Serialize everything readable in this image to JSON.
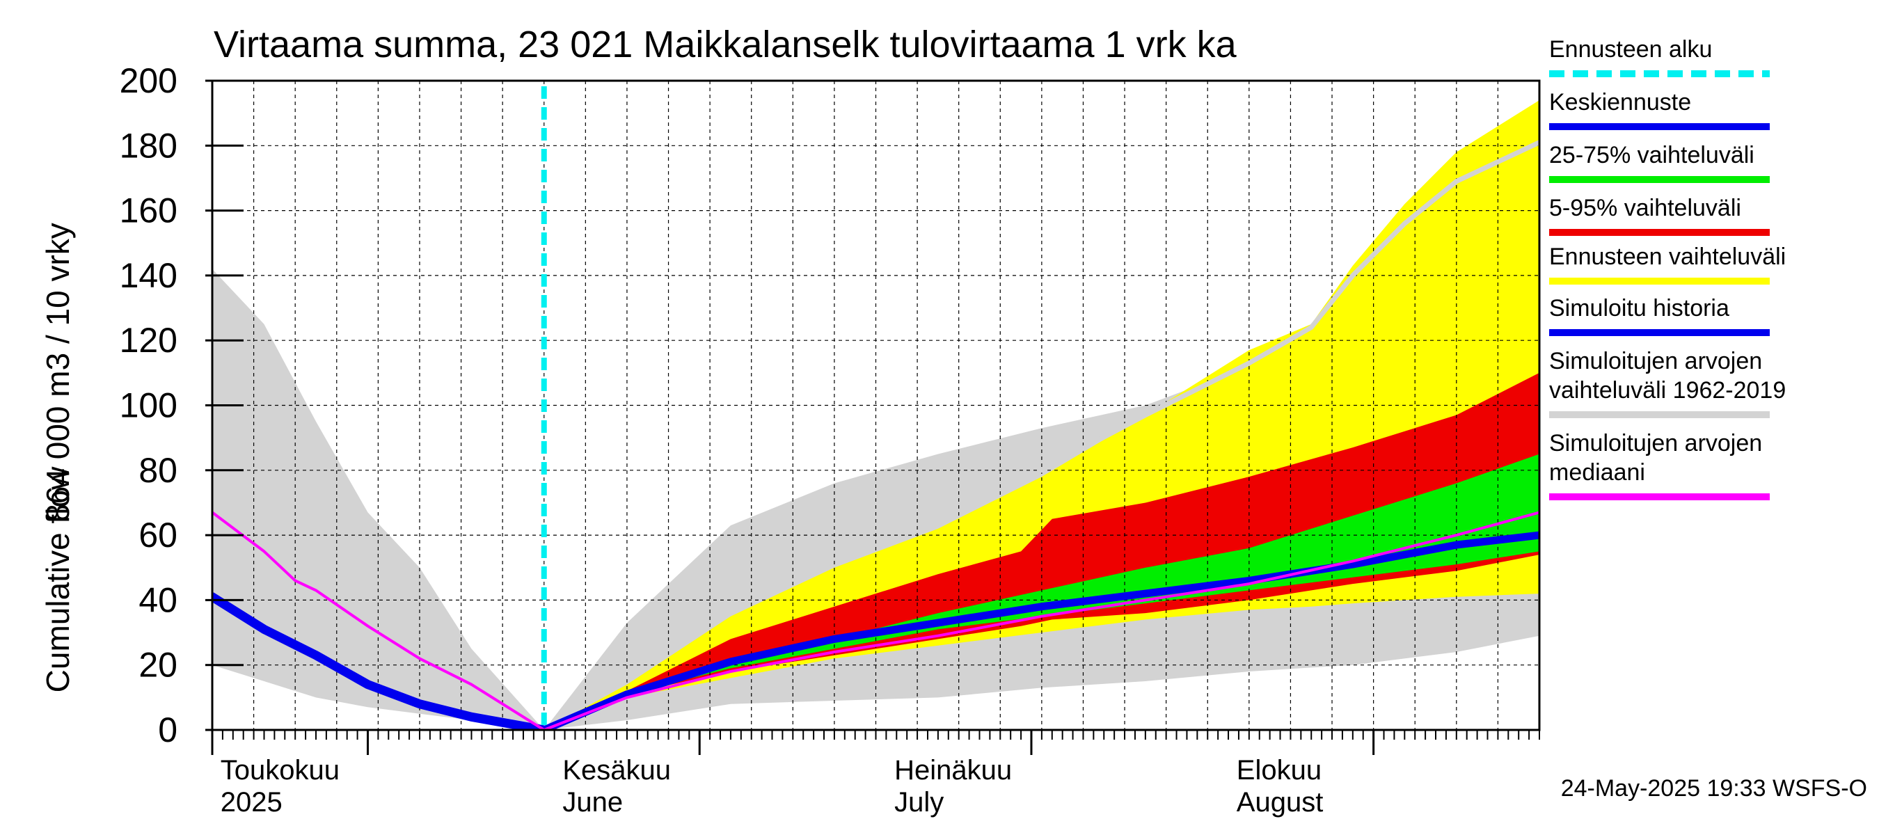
{
  "chart_data": {
    "type": "area",
    "title": "Virtaama summa, 23 021 Maikkalanselk tulovirtaama 1 vrk ka",
    "ylabel_lines": [
      "864 000 m3 / 10 vrky",
      "Cumulative flow"
    ],
    "ylim": [
      0,
      200
    ],
    "yticks": [
      0,
      20,
      40,
      60,
      80,
      100,
      120,
      140,
      160,
      180,
      200
    ],
    "xlim_days": [
      0,
      128
    ],
    "forecast_start_day": 32,
    "months": [
      {
        "day": 7.5,
        "line1": "Toukokuu",
        "line2": "2025"
      },
      {
        "day": 40.5,
        "line1": "Kesäkuu",
        "line2": "June"
      },
      {
        "day": 72.5,
        "line1": "Heinäkuu",
        "line2": "July"
      },
      {
        "day": 105.5,
        "line1": "Elokuu",
        "line2": "August"
      }
    ],
    "month_separators": [
      0,
      15,
      47,
      79,
      112
    ],
    "timestamp": "24-May-2025 19:33 WSFS-O",
    "colors": {
      "forecast_start": "#00f0f0",
      "mean": "#0000ee",
      "band_25_75": "#00ee00",
      "band_5_95": "#ee0000",
      "band_forecast": "#ffff00",
      "hist_band": "#d3d3d3",
      "hist_history": "#0000ee",
      "hist_median": "#ff00ff",
      "upper_line": "#d3d3d3"
    },
    "legend": [
      {
        "label": "Ennusteen alku",
        "color": "#00f0f0",
        "style": "dashed"
      },
      {
        "label": "Keskiennuste",
        "color": "#0000ee",
        "style": "solid"
      },
      {
        "label": "25-75% vaihteluväli",
        "color": "#00ee00",
        "style": "solid"
      },
      {
        "label": "5-95% vaihteluväli",
        "color": "#ee0000",
        "style": "solid"
      },
      {
        "label": "Ennusteen vaihteluväli",
        "color": "#ffff00",
        "style": "solid"
      },
      {
        "label": "Simuloitu historia",
        "color": "#0000ee",
        "style": "solid"
      },
      {
        "label": "Simuloitujen arvojen vaihteluväli 1962-2019",
        "color": "#d3d3d3",
        "style": "solid"
      },
      {
        "label": "Simuloitujen arvojen mediaani",
        "color": "#ff00ff",
        "style": "solid"
      }
    ],
    "series": [
      {
        "name": "Simuloitujen arvojen vaihteluväli 1962-2019",
        "kind": "band",
        "x": [
          0,
          5,
          10,
          15,
          20,
          25,
          32,
          40,
          50,
          60,
          70,
          80,
          90,
          100,
          110,
          120,
          128
        ],
        "upper": [
          142,
          125,
          95,
          67,
          50,
          25,
          0,
          33,
          63,
          76,
          85,
          93,
          100,
          112,
          125,
          150,
          180
        ],
        "lower": [
          20,
          15,
          10,
          7,
          5,
          3,
          0,
          3,
          8,
          9,
          10,
          13,
          15,
          18,
          20,
          24,
          29
        ]
      },
      {
        "name": "Ennusteen vaihteluväli",
        "kind": "band",
        "x": [
          32,
          40,
          50,
          60,
          70,
          80,
          90,
          100,
          106,
          110,
          115,
          120,
          128
        ],
        "upper": [
          0,
          14,
          35,
          50,
          62,
          78,
          97,
          117,
          125,
          143,
          162,
          178,
          194
        ],
        "lower": [
          0,
          10,
          16,
          22,
          26,
          30,
          34,
          37,
          38,
          39,
          40,
          41,
          42
        ]
      },
      {
        "name": "5-95% vaihteluväli",
        "kind": "band",
        "x": [
          32,
          40,
          50,
          60,
          70,
          78,
          81,
          90,
          100,
          110,
          120,
          128
        ],
        "upper": [
          0,
          12,
          28,
          38,
          48,
          55,
          65,
          70,
          78,
          87,
          97,
          110
        ],
        "lower": [
          0,
          11,
          18,
          23,
          28,
          32,
          34,
          36,
          40,
          45,
          49,
          54
        ]
      },
      {
        "name": "25-75% vaihteluväli",
        "kind": "band",
        "x": [
          32,
          40,
          50,
          60,
          70,
          80,
          90,
          100,
          110,
          120,
          128
        ],
        "upper": [
          0,
          12,
          21,
          28,
          36,
          43,
          50,
          56,
          66,
          76,
          85
        ],
        "lower": [
          0,
          11,
          19,
          25,
          31,
          35,
          39,
          43,
          47,
          51,
          55
        ]
      },
      {
        "name": "Keskiennuste",
        "kind": "line",
        "x": [
          32,
          40,
          50,
          60,
          70,
          80,
          90,
          100,
          110,
          120,
          128
        ],
        "y": [
          0,
          11,
          21,
          28,
          33,
          38,
          42,
          46,
          51,
          57,
          60
        ]
      },
      {
        "name": "Simuloitu historia",
        "kind": "line",
        "x": [
          0,
          5,
          10,
          15,
          20,
          25,
          32
        ],
        "y": [
          41,
          31,
          23,
          14,
          8,
          4,
          0
        ]
      },
      {
        "name": "Simuloitujen arvojen mediaani",
        "kind": "line",
        "x": [
          0,
          5,
          8,
          10,
          15,
          20,
          25,
          32,
          40,
          50,
          60,
          70,
          80,
          90,
          100,
          110,
          120,
          128
        ],
        "y": [
          67,
          55,
          46,
          43,
          32,
          22,
          14,
          0,
          10,
          18,
          24,
          29,
          35,
          40,
          45,
          52,
          60,
          67
        ]
      },
      {
        "name": "Upper history line",
        "kind": "line",
        "x": [
          80,
          90,
          100,
          106,
          110,
          115,
          120,
          128
        ],
        "y": [
          80,
          97,
          113,
          124,
          140,
          156,
          169,
          181
        ]
      }
    ]
  }
}
